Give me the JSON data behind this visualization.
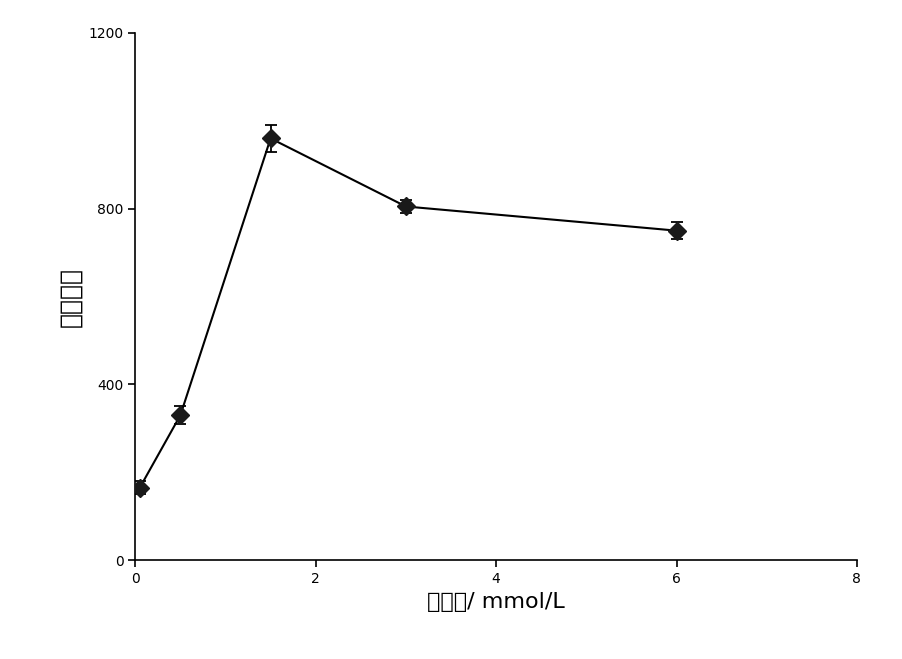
{
  "x": [
    0.05,
    0.5,
    1.5,
    3.0,
    6.0
  ],
  "y": [
    165,
    330,
    960,
    805,
    750
  ],
  "yerr": [
    15,
    20,
    30,
    15,
    20
  ],
  "xlim": [
    0,
    8
  ],
  "ylim": [
    0,
    1200
  ],
  "xticks": [
    0,
    2,
    4,
    6,
    8
  ],
  "yticks": [
    0,
    400,
    800,
    1200
  ],
  "ytick_labels": [
    "0",
    "400",
    "800",
    "1200"
  ],
  "xlabel": "盐浓度/ mmol/L",
  "ylabel": "发光强度",
  "line_color": "#000000",
  "marker_color": "#1a1a1a",
  "marker_size": 9,
  "linewidth": 1.5,
  "capsize": 4,
  "xlabel_fontsize": 16,
  "ylabel_fontsize": 18,
  "tick_fontsize": 15
}
